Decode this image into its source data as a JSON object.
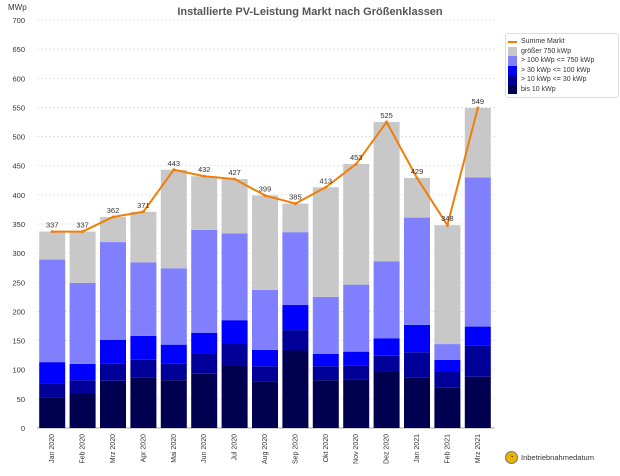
{
  "chart_data": {
    "type": "bar",
    "stacked": true,
    "title": "Installierte PV-Leistung Markt nach Größenklassen",
    "ylabel": "MWp",
    "xlabel": "Inbetriebnahmedatum",
    "ylim": [
      0,
      700
    ],
    "yticks": [
      0,
      50,
      100,
      150,
      200,
      250,
      300,
      350,
      400,
      450,
      500,
      550,
      600,
      650,
      700
    ],
    "grid": true,
    "legend_position": "right",
    "categories": [
      "Jan 2020",
      "Feb 2020",
      "Mrz 2020",
      "Apr 2020",
      "Mai 2020",
      "Jun 2020",
      "Jul 2020",
      "Aug 2020",
      "Sep 2020",
      "Okt 2020",
      "Nov 2020",
      "Dez 2020",
      "Jan 2021",
      "Feb 2021",
      "Mrz 2021"
    ],
    "series": [
      {
        "name": "bis 10 kWp",
        "color": "#000050",
        "values": [
          53,
          60,
          81,
          86,
          82,
          93,
          108,
          80,
          133,
          82,
          83,
          97,
          86,
          70,
          88
        ]
      },
      {
        "name": "> 10 kWp <= 30 kWp",
        "color": "#000099",
        "values": [
          24,
          22,
          30,
          31,
          28,
          34,
          37,
          26,
          35,
          24,
          24,
          27,
          44,
          27,
          54
        ]
      },
      {
        "name": "> 30 kWp <= 100 kWp",
        "color": "#0000ff",
        "values": [
          36,
          28,
          40,
          41,
          33,
          36,
          40,
          28,
          43,
          21,
          24,
          30,
          47,
          20,
          32
        ]
      },
      {
        "name": "> 100 kWp <= 750 kWp",
        "color": "#8080ff",
        "values": [
          176,
          139,
          168,
          126,
          131,
          177,
          149,
          103,
          125,
          98,
          115,
          132,
          184,
          27,
          256
        ]
      },
      {
        "name": "größer 750 kWp",
        "color": "#c8c8c8",
        "values": [
          48,
          88,
          43,
          87,
          169,
          92,
          93,
          162,
          49,
          188,
          207,
          239,
          68,
          204,
          119
        ]
      }
    ],
    "line": {
      "name": "Summe Markt",
      "color": "#f07f09",
      "values": [
        337,
        337,
        362,
        371,
        443,
        432,
        427,
        399,
        385,
        413,
        453,
        525,
        429,
        348,
        549
      ]
    }
  }
}
